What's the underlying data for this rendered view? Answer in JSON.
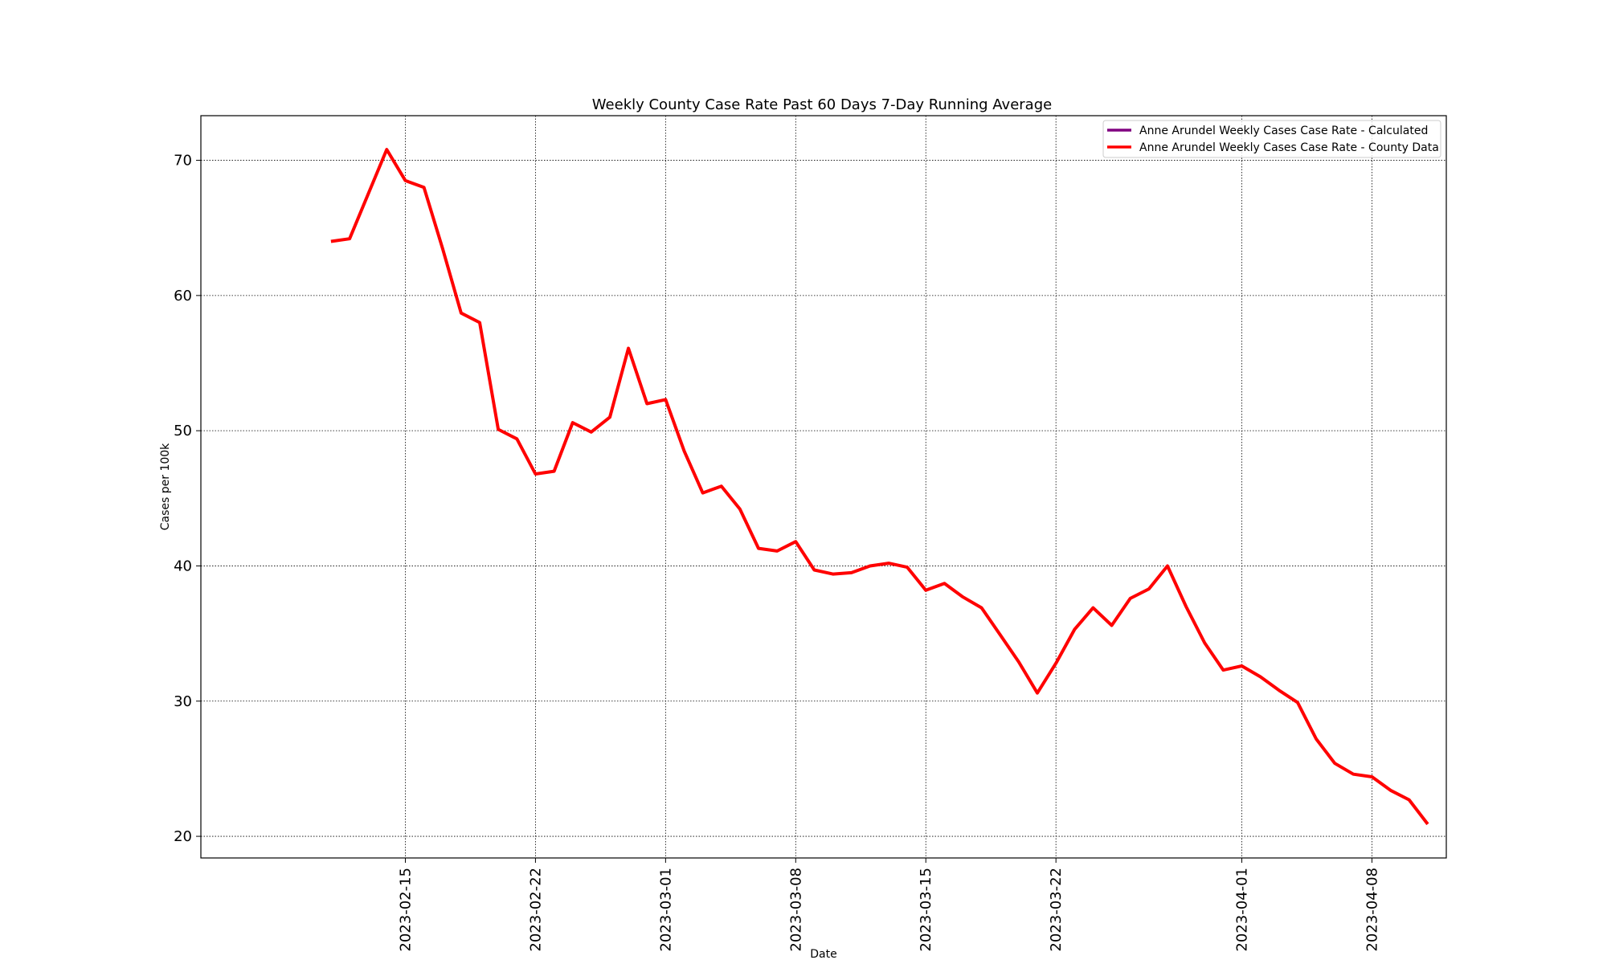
{
  "chart_data": {
    "type": "line",
    "title": "Weekly County Case Rate  Past 60 Days 7-Day Running Average",
    "xlabel": "Date",
    "ylabel": "Cases per 100k",
    "ylim": [
      18.4,
      73.3
    ],
    "xlim": [
      "2023-02-04",
      "2023-04-12"
    ],
    "yticks": [
      20,
      30,
      40,
      50,
      60,
      70
    ],
    "xticks": [
      "2023-02-15",
      "2023-02-22",
      "2023-03-01",
      "2023-03-08",
      "2023-03-15",
      "2023-03-22",
      "2023-04-01",
      "2023-04-08"
    ],
    "grid": true,
    "legend_position": "top-right",
    "series": [
      {
        "name": "Anne Arundel Weekly Cases Case Rate - Calculated",
        "color": "#800080",
        "x": [],
        "y": []
      },
      {
        "name": "Anne Arundel Weekly Cases Case Rate - County Data",
        "color": "#ff0000",
        "x": [
          "2023-02-11",
          "2023-02-12",
          "2023-02-13",
          "2023-02-14",
          "2023-02-15",
          "2023-02-16",
          "2023-02-17",
          "2023-02-18",
          "2023-02-19",
          "2023-02-20",
          "2023-02-21",
          "2023-02-22",
          "2023-02-23",
          "2023-02-24",
          "2023-02-25",
          "2023-02-26",
          "2023-02-27",
          "2023-02-28",
          "2023-03-01",
          "2023-03-02",
          "2023-03-03",
          "2023-03-04",
          "2023-03-05",
          "2023-03-06",
          "2023-03-07",
          "2023-03-08",
          "2023-03-09",
          "2023-03-10",
          "2023-03-11",
          "2023-03-12",
          "2023-03-13",
          "2023-03-14",
          "2023-03-15",
          "2023-03-16",
          "2023-03-17",
          "2023-03-18",
          "2023-03-19",
          "2023-03-20",
          "2023-03-21",
          "2023-03-22",
          "2023-03-23",
          "2023-03-24",
          "2023-03-25",
          "2023-03-26",
          "2023-03-27",
          "2023-03-28",
          "2023-03-29",
          "2023-03-30",
          "2023-03-31",
          "2023-04-01",
          "2023-04-02",
          "2023-04-03",
          "2023-04-04",
          "2023-04-05",
          "2023-04-06",
          "2023-04-07",
          "2023-04-08",
          "2023-04-09",
          "2023-04-10",
          "2023-04-11"
        ],
        "y": [
          64.0,
          64.2,
          67.5,
          70.8,
          68.5,
          68.0,
          63.5,
          58.7,
          58.0,
          50.1,
          49.4,
          46.8,
          47.0,
          50.6,
          49.9,
          51.0,
          56.1,
          52.0,
          52.3,
          48.5,
          45.4,
          45.9,
          44.2,
          41.3,
          41.1,
          41.8,
          39.7,
          39.4,
          39.5,
          40.0,
          40.2,
          39.9,
          38.2,
          38.7,
          37.7,
          36.9,
          34.9,
          32.9,
          30.6,
          32.8,
          35.3,
          36.9,
          35.6,
          37.6,
          38.3,
          40.0,
          37.0,
          34.3,
          32.3,
          32.6,
          31.8,
          30.8,
          29.9,
          27.2,
          25.4,
          24.6,
          24.4,
          23.4,
          22.7,
          20.9
        ]
      }
    ]
  }
}
